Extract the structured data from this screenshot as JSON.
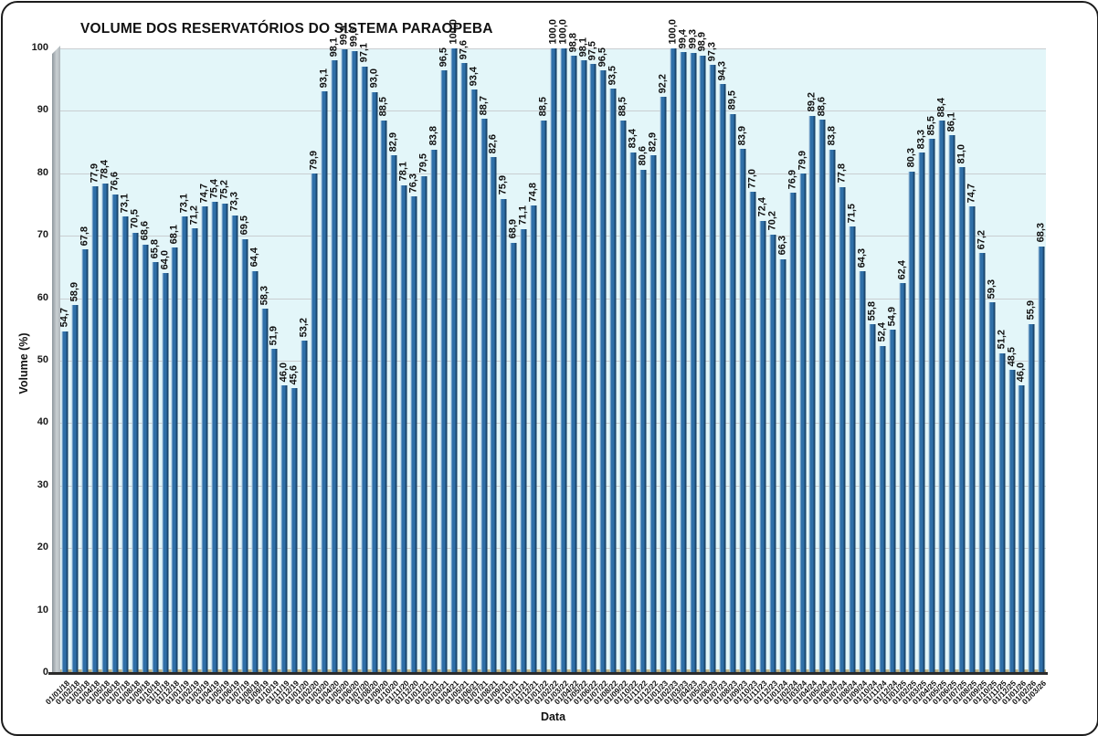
{
  "chart_data": {
    "type": "bar",
    "title": "VOLUME DOS RESERVATÓRIOS DO SISTEMA PARAOPEBA",
    "xlabel": "Data",
    "ylabel": "Volume (%)",
    "ylim": [
      0,
      100
    ],
    "yticks": [
      0,
      10,
      20,
      30,
      40,
      50,
      60,
      70,
      80,
      90,
      100
    ],
    "grid": true,
    "legend_position": "none",
    "decimal_separator": ",",
    "colors": {
      "bar_mid": "#2f6fa8",
      "bar_dark": "#173f63",
      "bar_light": "#aac7de",
      "plot_background": "#e3f6f9",
      "gridline": "#c9ced1",
      "axis_line": "#2b2b2b",
      "wall_3d": "#aeb6ba",
      "floor_3d": "#a99a66",
      "frame_border": "#1c1c1c",
      "text": "#111111"
    },
    "categories": [
      "01/01/18",
      "01/02/18",
      "01/03/18",
      "01/04/18",
      "01/05/18",
      "01/06/18",
      "01/07/18",
      "01/08/18",
      "01/09/18",
      "01/10/18",
      "01/11/18",
      "01/12/18",
      "01/01/19",
      "01/02/19",
      "01/03/19",
      "01/04/19",
      "01/05/19",
      "01/06/19",
      "01/07/19",
      "01/08/19",
      "01/09/19",
      "01/10/19",
      "01/11/19",
      "01/12/19",
      "01/01/20",
      "01/02/20",
      "01/03/20",
      "01/04/20",
      "01/05/20",
      "01/06/20",
      "01/07/20",
      "01/08/20",
      "01/09/20",
      "01/10/20",
      "01/11/20",
      "01/12/20",
      "01/01/21",
      "01/02/21",
      "01/03/21",
      "01/04/21",
      "01/05/21",
      "01/06/21",
      "01/07/21",
      "01/08/21",
      "01/09/21",
      "01/10/21",
      "01/11/21",
      "01/12/21",
      "01/01/22",
      "01/02/22",
      "01/03/22",
      "01/04/22",
      "01/05/22",
      "01/06/22",
      "01/07/22",
      "01/08/22",
      "01/09/22",
      "01/10/22",
      "01/11/22",
      "01/12/22",
      "01/01/23",
      "01/02/23",
      "01/03/23",
      "01/04/23",
      "01/05/23",
      "01/06/23",
      "01/07/23",
      "01/08/23",
      "01/09/23",
      "01/10/23",
      "01/11/23",
      "01/12/23",
      "01/01/24",
      "01/02/24",
      "01/03/24",
      "01/04/24",
      "01/05/24",
      "01/06/24",
      "01/07/24",
      "01/08/24",
      "01/09/24",
      "01/10/24",
      "01/11/24",
      "01/12/24",
      "01/01/25",
      "01/02/25",
      "01/03/25",
      "01/04/25",
      "01/05/25",
      "01/06/25",
      "01/07/25",
      "01/08/25",
      "01/09/25",
      "01/10/25",
      "01/11/25",
      "01/12/25",
      "01/01/26",
      "01/02/26",
      "01/03/26"
    ],
    "values": [
      54.7,
      58.9,
      67.8,
      77.9,
      78.4,
      76.6,
      73.1,
      70.5,
      68.6,
      65.8,
      64.0,
      68.1,
      73.1,
      71.2,
      74.7,
      75.4,
      75.2,
      73.3,
      69.5,
      64.4,
      58.3,
      51.9,
      46.0,
      45.6,
      53.2,
      79.9,
      93.1,
      98.1,
      99.9,
      99.6,
      97.1,
      93.0,
      88.5,
      82.9,
      78.1,
      76.3,
      79.5,
      83.8,
      96.5,
      100.0,
      97.6,
      93.4,
      88.7,
      82.6,
      75.9,
      68.9,
      71.1,
      74.8,
      88.5,
      100.0,
      100.0,
      98.8,
      98.1,
      97.5,
      96.5,
      93.5,
      88.5,
      83.4,
      80.6,
      82.9,
      92.2,
      100.0,
      99.4,
      99.3,
      98.9,
      97.3,
      94.3,
      89.5,
      83.9,
      77.0,
      72.4,
      70.2,
      66.3,
      76.9,
      79.9,
      89.2,
      88.6,
      83.8,
      77.8,
      71.5,
      64.3,
      55.8,
      52.4,
      54.9,
      62.4,
      80.3,
      83.3,
      85.5,
      88.4,
      86.1,
      81.0,
      74.7,
      67.2,
      59.3,
      51.2,
      48.5,
      46.0,
      55.9,
      68.3
    ],
    "value_labels": [
      "54,7",
      "58,9",
      "67,8",
      "77,9",
      "78,4",
      "76,6",
      "73,1",
      "70,5",
      "68,6",
      "65,8",
      "64,0",
      "68,1",
      "73,1",
      "71,2",
      "74,7",
      "75,4",
      "75,2",
      "73,3",
      "69,5",
      "64,4",
      "58,3",
      "51,9",
      "46,0",
      "45,6",
      "53,2",
      "79,9",
      "93,1",
      "98,1",
      "99,9",
      "99,6",
      "97,1",
      "93,0",
      "88,5",
      "82,9",
      "78,1",
      "76,3",
      "79,5",
      "83,8",
      "96,5",
      "100,0",
      "97,6",
      "93,4",
      "88,7",
      "82,6",
      "75,9",
      "68,9",
      "71,1",
      "74,8",
      "88,5",
      "100,0",
      "100,0",
      "98,8",
      "98,1",
      "97,5",
      "96,5",
      "93,5",
      "88,5",
      "83,4",
      "80,6",
      "82,9",
      "92,2",
      "100,0",
      "99,4",
      "99,3",
      "98,9",
      "97,3",
      "94,3",
      "89,5",
      "83,9",
      "77,0",
      "72,4",
      "70,2",
      "66,3",
      "76,9",
      "79,9",
      "89,2",
      "88,6",
      "83,8",
      "77,8",
      "71,5",
      "64,3",
      "55,8",
      "52,4",
      "54,9",
      "62,4",
      "80,3",
      "83,3",
      "85,5",
      "88,4",
      "86,1",
      "81,0",
      "74,7",
      "67,2",
      "59,3",
      "51,2",
      "48,5",
      "46,0",
      "55,9",
      "68,3"
    ]
  }
}
